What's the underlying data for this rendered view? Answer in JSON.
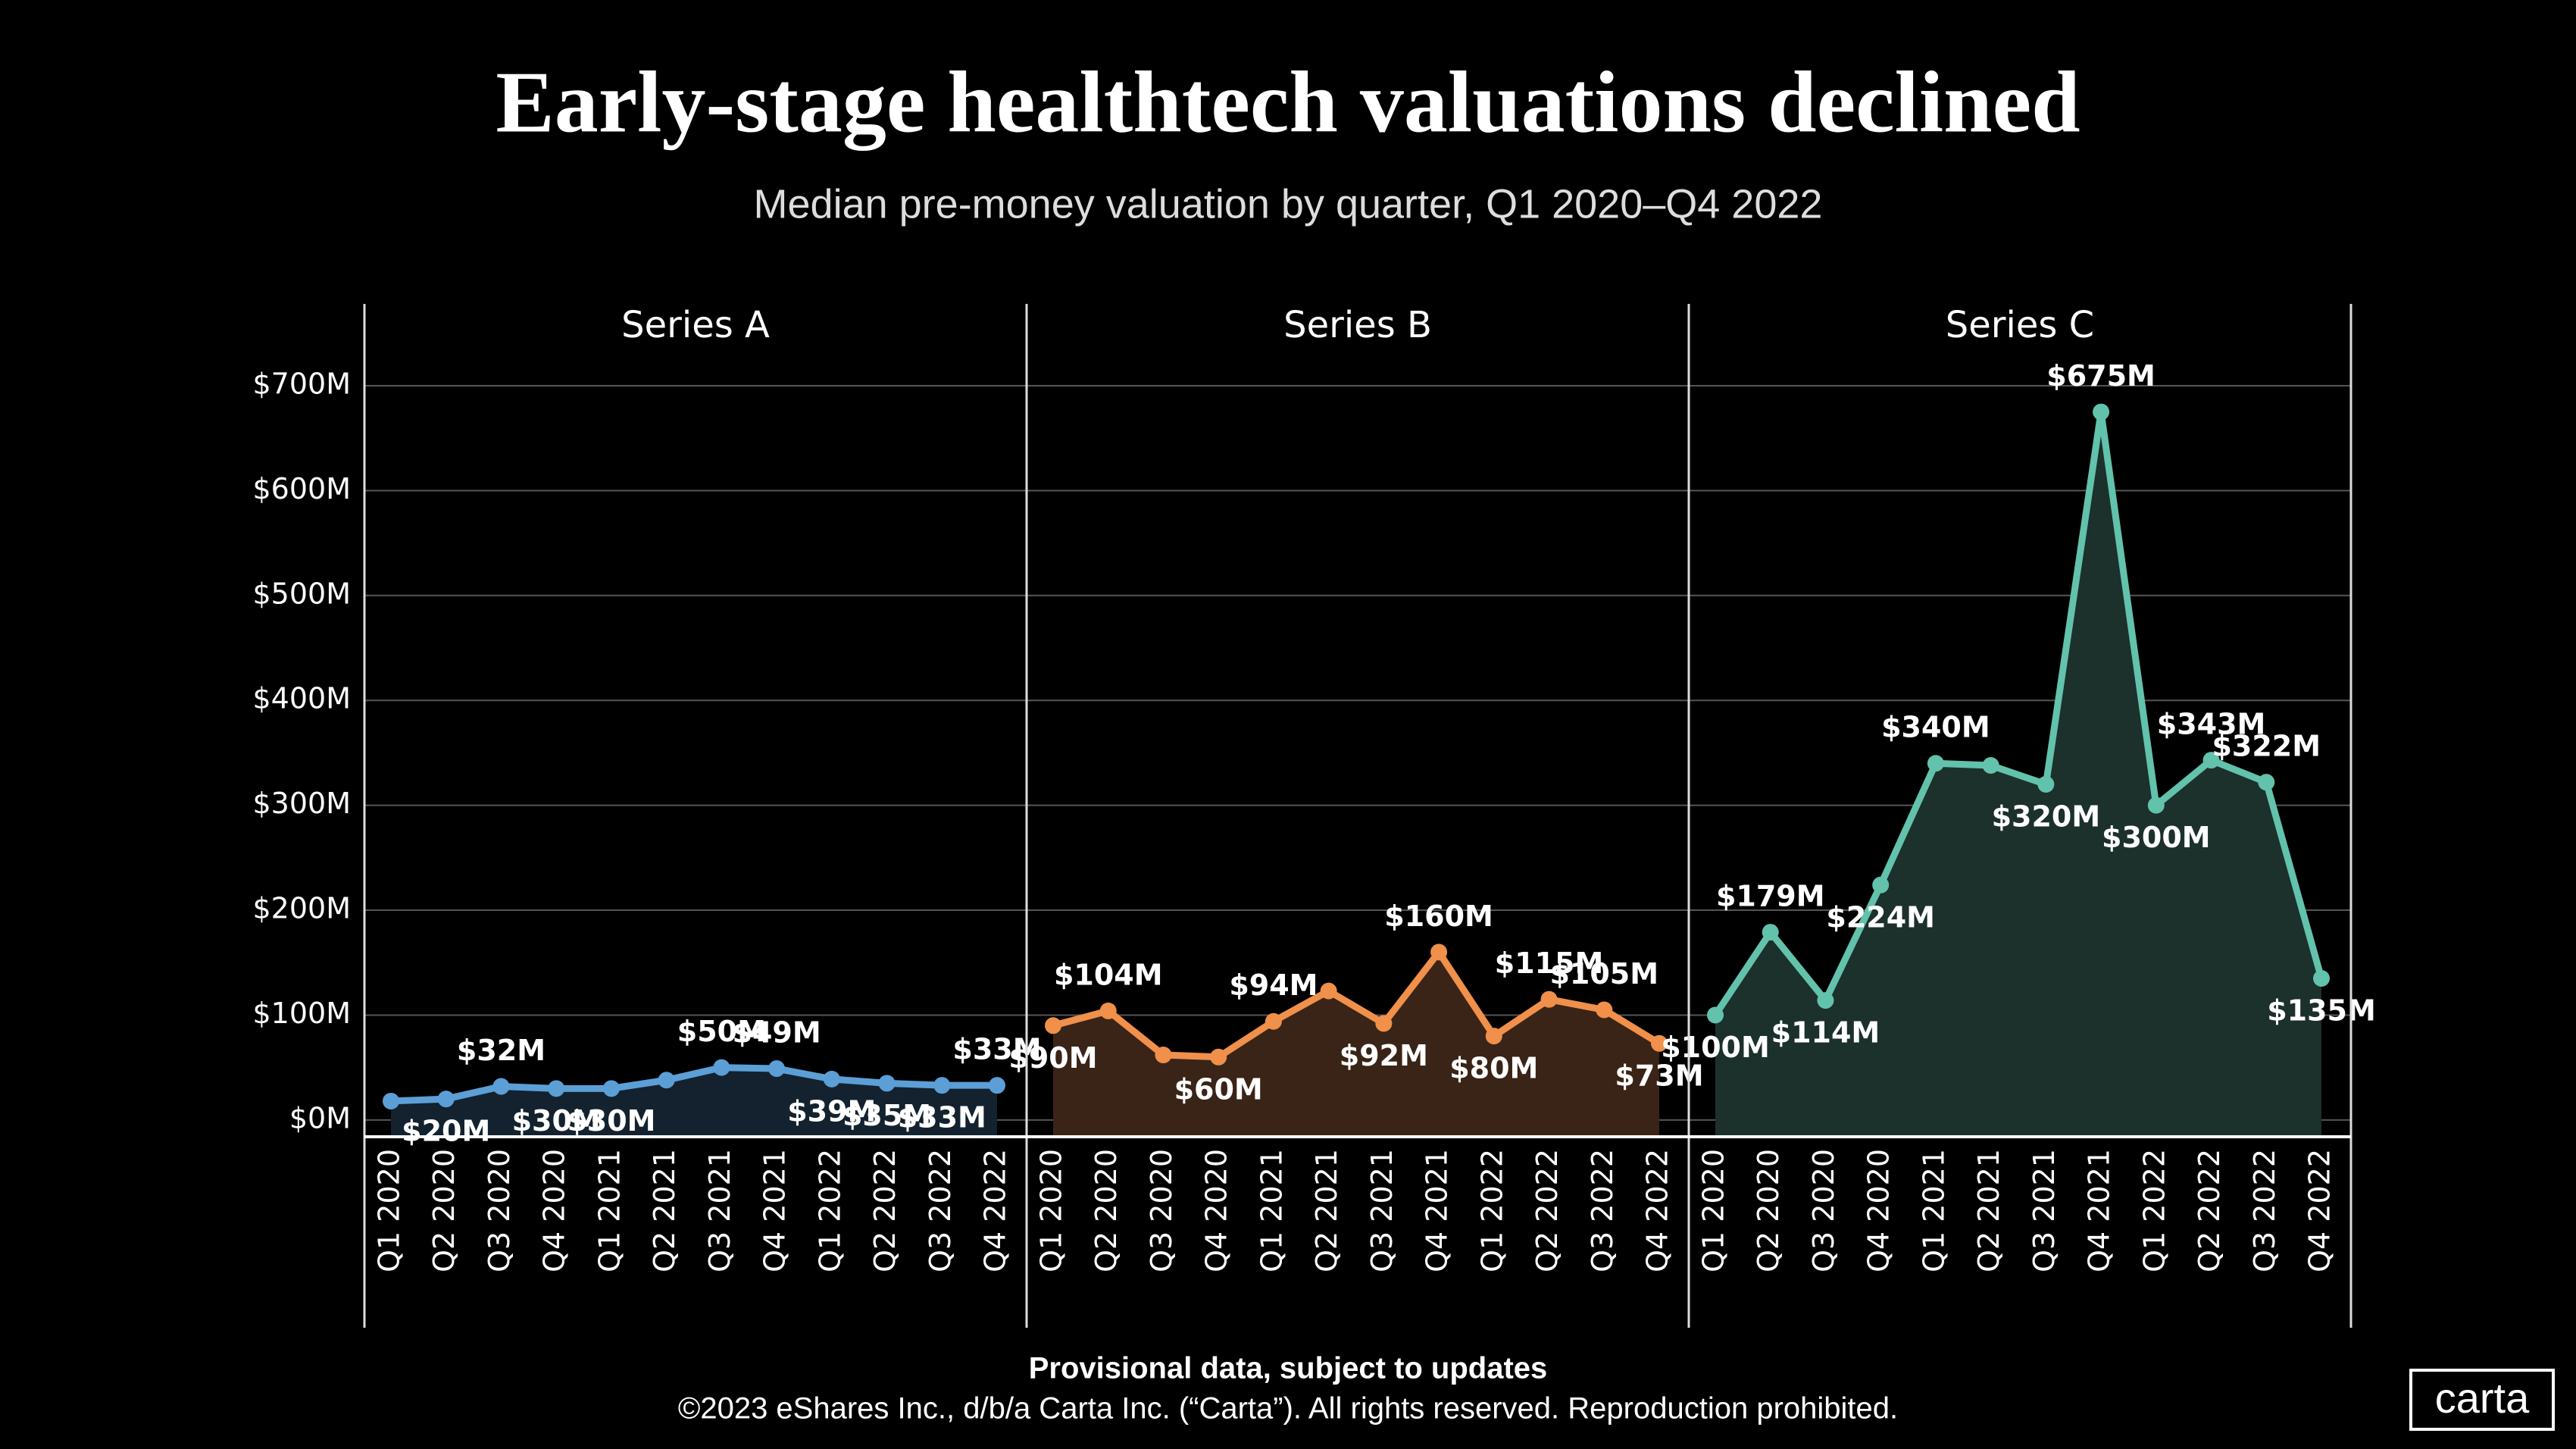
{
  "chart_data": {
    "type": "line",
    "title": "Early-stage healthtech valuations declined",
    "subtitle": "Median pre-money valuation by quarter, Q1 2020–Q4 2022",
    "categories": [
      "Q1 2020",
      "Q2 2020",
      "Q3 2020",
      "Q4 2020",
      "Q1 2021",
      "Q2 2021",
      "Q3 2021",
      "Q4 2021",
      "Q1 2022",
      "Q2 2022",
      "Q3 2022",
      "Q4 2022"
    ],
    "ylim": [
      -16,
      778
    ],
    "yticks": [
      {
        "value": 0,
        "label": "$0M"
      },
      {
        "value": 100,
        "label": "$100M"
      },
      {
        "value": 200,
        "label": "$200M"
      },
      {
        "value": 300,
        "label": "$300M"
      },
      {
        "value": 400,
        "label": "$400M"
      },
      {
        "value": 500,
        "label": "$500M"
      },
      {
        "value": 600,
        "label": "$600M"
      },
      {
        "value": 700,
        "label": "$700M"
      }
    ],
    "grid": true,
    "panels": [
      {
        "name": "Series A",
        "color": "#5b9fd6",
        "fill": "#13222e",
        "values": [
          18,
          20,
          32,
          30,
          30,
          38,
          50,
          49,
          39,
          35,
          33,
          33
        ],
        "value_labels": [
          null,
          "$20M",
          "$32M",
          "$30M",
          "$30M",
          null,
          "$50M",
          "$49M",
          "$39M",
          "$35M",
          "$33M",
          "$33M"
        ]
      },
      {
        "name": "Series B",
        "color": "#f0904a",
        "fill": "#3a2417",
        "values": [
          90,
          104,
          62,
          60,
          94,
          123,
          92,
          160,
          80,
          115,
          105,
          73
        ],
        "value_labels": [
          "$90M",
          "$104M",
          null,
          "$60M",
          "$94M",
          null,
          "$92M",
          "$160M",
          "$80M",
          "$115M",
          "$105M",
          "$73M"
        ]
      },
      {
        "name": "Series C",
        "color": "#62c2ab",
        "fill": "#1c302c",
        "values": [
          100,
          179,
          114,
          224,
          340,
          338,
          320,
          675,
          300,
          343,
          322,
          135
        ],
        "value_labels": [
          "$100M",
          "$179M",
          "$114M",
          "$224M",
          "$340M",
          null,
          "$320M",
          "$675M",
          "$300M",
          "$343M",
          "$322M",
          "$135M"
        ]
      }
    ]
  },
  "footer": {
    "note": "Provisional data, subject to updates",
    "copyright": "©2023 eShares Inc., d/b/a Carta Inc. (“Carta”). All rights reserved. Reproduction prohibited.",
    "logo": "carta"
  }
}
